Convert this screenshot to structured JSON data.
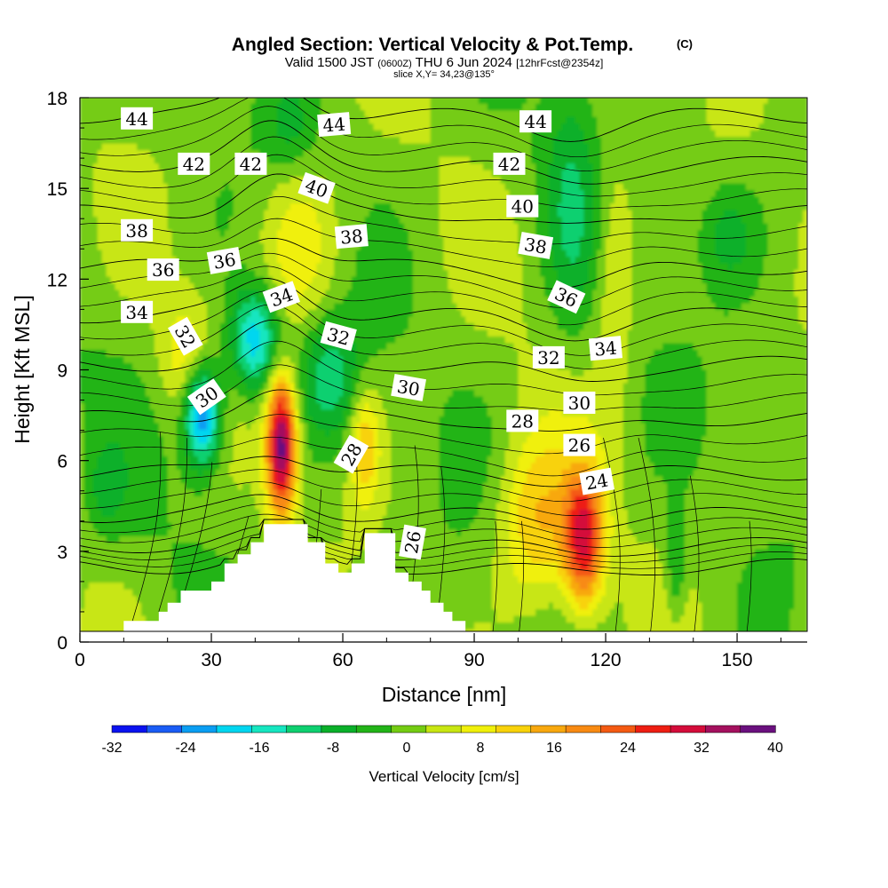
{
  "chart_data": {
    "type": "heatmap",
    "title": "Angled Section: Vertical Velocity & Pot.Temp.",
    "title_mark": "(C)",
    "subtitle_parts": [
      "Valid 1500 JST",
      "(0600Z)",
      "THU 6 Jun 2024",
      "[12hrFcst@2354z]"
    ],
    "slice_label": "slice X,Y= 34,23@135°",
    "xlabel": "Distance [nm]",
    "ylabel": "Height [Kft MSL]",
    "xlim": [
      0,
      166
    ],
    "ylim": [
      0,
      18
    ],
    "xticks": [
      0,
      30,
      60,
      90,
      120,
      150
    ],
    "yticks": [
      0,
      3,
      6,
      9,
      12,
      15,
      18
    ],
    "colorbar": {
      "label": "Vertical Velocity [cm/s]",
      "ticks": [
        -32,
        -24,
        -16,
        -8,
        0,
        8,
        16,
        24,
        32,
        40
      ],
      "levels": [
        -32,
        -28,
        -24,
        -20,
        -16,
        -12,
        -8,
        -4,
        0,
        4,
        8,
        12,
        16,
        20,
        24,
        28,
        32,
        36,
        40
      ],
      "colors": [
        "#0a12f0",
        "#1a5cf5",
        "#0a9ef2",
        "#00d6f0",
        "#16e6c0",
        "#0ed070",
        "#0ab02a",
        "#22b418",
        "#74cc12",
        "#c8e612",
        "#f0f00a",
        "#f8d20a",
        "#f8a80e",
        "#f88a12",
        "#f45a12",
        "#ee1e12",
        "#d40c3a",
        "#a4105e",
        "#6a107e"
      ]
    },
    "background_value": 2,
    "updrafts": [
      {
        "x": 46,
        "y": 6.5,
        "sx": 2.4,
        "sy": 1.6,
        "amp": 40
      },
      {
        "x": 115,
        "y": 3.4,
        "sx": 3.2,
        "sy": 1.6,
        "amp": 30
      },
      {
        "x": 104,
        "y": 4.0,
        "sx": 6,
        "sy": 2.0,
        "amp": 14
      },
      {
        "x": 65,
        "y": 6.5,
        "sx": 2.4,
        "sy": 1.4,
        "amp": 13
      },
      {
        "x": 24,
        "y": 9.5,
        "sx": 4,
        "sy": 1.4,
        "amp": 8
      },
      {
        "x": 50,
        "y": 13.0,
        "sx": 6,
        "sy": 2.0,
        "amp": 8
      },
      {
        "x": 122,
        "y": 12.0,
        "sx": 3,
        "sy": 3.0,
        "amp": 7
      }
    ],
    "downdrafts": [
      {
        "x": 28,
        "y": 7.5,
        "sx": 3,
        "sy": 1.2,
        "amp": -28
      },
      {
        "x": 40,
        "y": 10.0,
        "sx": 4,
        "sy": 1.2,
        "amp": -22
      },
      {
        "x": 57,
        "y": 8.8,
        "sx": 5,
        "sy": 1.4,
        "amp": -12
      },
      {
        "x": 112,
        "y": 14.5,
        "sx": 4,
        "sy": 3.0,
        "amp": -8
      },
      {
        "x": 148,
        "y": 13.5,
        "sx": 5,
        "sy": 1.2,
        "amp": -7
      },
      {
        "x": 136,
        "y": 2.5,
        "sx": 1.6,
        "sy": 1.2,
        "amp": -8
      },
      {
        "x": 6,
        "y": 5.0,
        "sx": 3,
        "sy": 1.0,
        "amp": -6
      },
      {
        "x": 48,
        "y": 17.0,
        "sx": 4,
        "sy": 1.0,
        "amp": -6
      }
    ],
    "terrain": [
      {
        "x": 0,
        "h": 0
      },
      {
        "x": 10,
        "h": 0
      },
      {
        "x": 10,
        "h": 0.7
      },
      {
        "x": 18,
        "h": 0.7
      },
      {
        "x": 18,
        "h": 1.0
      },
      {
        "x": 20,
        "h": 1.0
      },
      {
        "x": 20,
        "h": 1.3
      },
      {
        "x": 23,
        "h": 1.3
      },
      {
        "x": 23,
        "h": 1.7
      },
      {
        "x": 30,
        "h": 1.7
      },
      {
        "x": 30,
        "h": 2.0
      },
      {
        "x": 33,
        "h": 2.0
      },
      {
        "x": 33,
        "h": 2.6
      },
      {
        "x": 36,
        "h": 2.6
      },
      {
        "x": 36,
        "h": 2.9
      },
      {
        "x": 39,
        "h": 2.9
      },
      {
        "x": 39,
        "h": 3.3
      },
      {
        "x": 42,
        "h": 3.3
      },
      {
        "x": 42,
        "h": 3.9
      },
      {
        "x": 52,
        "h": 3.9
      },
      {
        "x": 52,
        "h": 3.3
      },
      {
        "x": 56,
        "h": 3.3
      },
      {
        "x": 56,
        "h": 2.6
      },
      {
        "x": 59,
        "h": 2.6
      },
      {
        "x": 59,
        "h": 2.3
      },
      {
        "x": 62,
        "h": 2.3
      },
      {
        "x": 62,
        "h": 2.6
      },
      {
        "x": 65,
        "h": 2.6
      },
      {
        "x": 65,
        "h": 3.6
      },
      {
        "x": 72,
        "h": 3.6
      },
      {
        "x": 72,
        "h": 2.3
      },
      {
        "x": 75,
        "h": 2.3
      },
      {
        "x": 75,
        "h": 2.0
      },
      {
        "x": 78,
        "h": 2.0
      },
      {
        "x": 78,
        "h": 1.7
      },
      {
        "x": 80,
        "h": 1.7
      },
      {
        "x": 80,
        "h": 1.3
      },
      {
        "x": 83,
        "h": 1.3
      },
      {
        "x": 83,
        "h": 1.0
      },
      {
        "x": 85,
        "h": 1.0
      },
      {
        "x": 85,
        "h": 0.7
      },
      {
        "x": 88,
        "h": 0.7
      },
      {
        "x": 88,
        "h": 0.3
      },
      {
        "x": 90,
        "h": 0.3
      },
      {
        "x": 90,
        "h": 0
      },
      {
        "x": 166,
        "h": 0
      }
    ],
    "theta_contours": [
      {
        "value": 24,
        "base": 2.5
      },
      {
        "value": 26,
        "base": 3.2
      },
      {
        "value": 28,
        "base": 4.2
      },
      {
        "value": 30,
        "base": 5.6
      },
      {
        "value": 32,
        "base": 7.4
      },
      {
        "value": 34,
        "base": 9.2
      },
      {
        "value": 36,
        "base": 10.8
      },
      {
        "value": 38,
        "base": 12.4
      },
      {
        "value": 40,
        "base": 14.2
      },
      {
        "value": 42,
        "base": 15.8
      },
      {
        "value": 44,
        "base": 17.4
      }
    ],
    "contour_labels": [
      {
        "text": "44",
        "x": 13,
        "y": 17.3,
        "rot": 0
      },
      {
        "text": "44",
        "x": 58,
        "y": 17.1,
        "rot": -5
      },
      {
        "text": "44",
        "x": 104,
        "y": 17.2,
        "rot": 0
      },
      {
        "text": "42",
        "x": 26,
        "y": 15.8,
        "rot": 0
      },
      {
        "text": "42",
        "x": 39,
        "y": 15.8,
        "rot": 0
      },
      {
        "text": "42",
        "x": 98,
        "y": 15.8,
        "rot": 0
      },
      {
        "text": "40",
        "x": 54,
        "y": 15.0,
        "rot": 20
      },
      {
        "text": "40",
        "x": 101,
        "y": 14.4,
        "rot": 0
      },
      {
        "text": "38",
        "x": 13,
        "y": 13.6,
        "rot": 0
      },
      {
        "text": "38",
        "x": 62,
        "y": 13.4,
        "rot": -5
      },
      {
        "text": "38",
        "x": 104,
        "y": 13.1,
        "rot": 10
      },
      {
        "text": "36",
        "x": 19,
        "y": 12.3,
        "rot": 0
      },
      {
        "text": "36",
        "x": 33,
        "y": 12.6,
        "rot": -10
      },
      {
        "text": "36",
        "x": 111,
        "y": 11.4,
        "rot": 25
      },
      {
        "text": "34",
        "x": 13,
        "y": 10.9,
        "rot": 0
      },
      {
        "text": "34",
        "x": 46,
        "y": 11.4,
        "rot": -20
      },
      {
        "text": "34",
        "x": 120,
        "y": 9.7,
        "rot": -5
      },
      {
        "text": "32",
        "x": 24,
        "y": 10.1,
        "rot": 60
      },
      {
        "text": "32",
        "x": 59,
        "y": 10.1,
        "rot": 15
      },
      {
        "text": "32",
        "x": 107,
        "y": 9.4,
        "rot": 0
      },
      {
        "text": "30",
        "x": 29,
        "y": 8.1,
        "rot": -35
      },
      {
        "text": "30",
        "x": 75,
        "y": 8.4,
        "rot": 10
      },
      {
        "text": "30",
        "x": 114,
        "y": 7.9,
        "rot": 0
      },
      {
        "text": "28",
        "x": 62,
        "y": 6.2,
        "rot": -60
      },
      {
        "text": "28",
        "x": 101,
        "y": 7.3,
        "rot": 0
      },
      {
        "text": "26",
        "x": 76,
        "y": 3.3,
        "rot": -80
      },
      {
        "text": "26",
        "x": 114,
        "y": 6.5,
        "rot": 0
      },
      {
        "text": "24",
        "x": 118,
        "y": 5.3,
        "rot": -10
      }
    ]
  }
}
